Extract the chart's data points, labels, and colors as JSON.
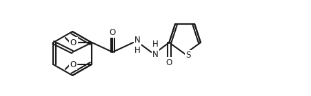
{
  "bg": "#ffffff",
  "lw": 1.5,
  "lw2": 1.5,
  "atoms": {
    "O_top_left": "O",
    "O_bot_left": "O",
    "O_carbonyl1": "O",
    "NH1": "H\nN",
    "NH2": "N\nH",
    "O_carbonyl2": "O",
    "S": "S"
  },
  "fontsize": 8.5
}
